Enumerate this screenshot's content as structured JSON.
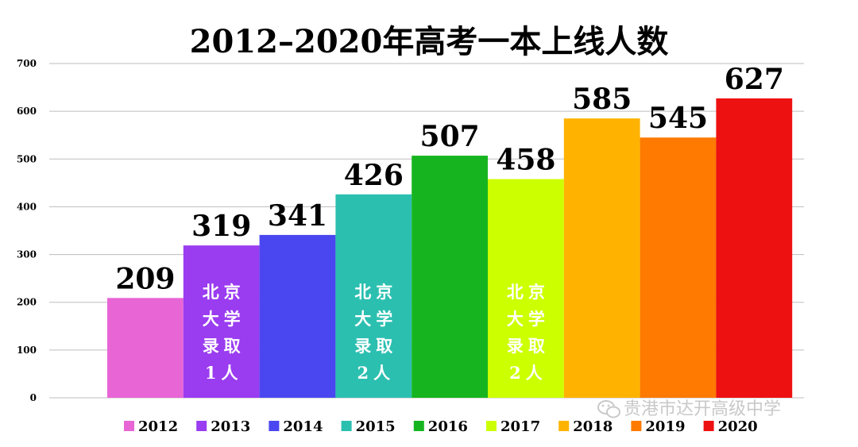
{
  "chart_data": {
    "type": "bar",
    "title": "2012–2020年高考一本上线人数",
    "categories": [
      "2012",
      "2013",
      "2014",
      "2015",
      "2016",
      "2017",
      "2018",
      "2019",
      "2020"
    ],
    "values": [
      209,
      319,
      341,
      426,
      507,
      458,
      585,
      545,
      627
    ],
    "colors": [
      "#e865d6",
      "#9a3cf0",
      "#4a47f0",
      "#2bbfb0",
      "#16b51f",
      "#ccff00",
      "#ffb300",
      "#ff7a00",
      "#ee1111"
    ],
    "ylim": [
      0,
      700
    ],
    "yticks": [
      0,
      100,
      200,
      300,
      400,
      500,
      600,
      700
    ],
    "grid": true,
    "legend": "bottom",
    "annotations": [
      {
        "category": "2013",
        "lines": [
          "北京",
          "大学",
          "录取",
          "1人"
        ]
      },
      {
        "category": "2015",
        "lines": [
          "北京",
          "大学",
          "录取",
          "2人"
        ]
      },
      {
        "category": "2017",
        "lines": [
          "北京",
          "大学",
          "录取",
          "2人"
        ]
      }
    ]
  },
  "watermark": {
    "text": "贵港市达开高级中学",
    "icon": "wechat-icon"
  }
}
